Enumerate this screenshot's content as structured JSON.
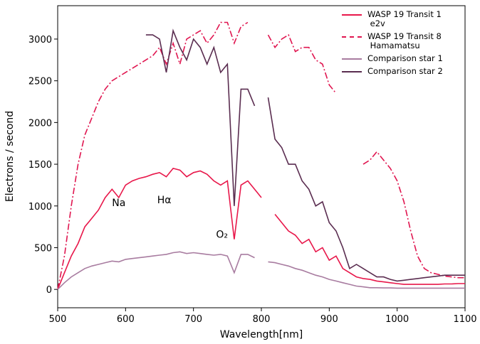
{
  "chart_data": {
    "type": "line",
    "xlabel": "Wavelength[nm]",
    "ylabel": "Electrons / second",
    "xlim": [
      500,
      1100
    ],
    "ylim": [
      -220,
      3400
    ],
    "xticks": [
      500,
      600,
      700,
      800,
      900,
      1000,
      1100
    ],
    "yticks": [
      0,
      500,
      1000,
      1500,
      2000,
      2500,
      3000
    ],
    "legend": "upper right",
    "annotations": [
      {
        "text": "Na",
        "x": 590,
        "y": 1000
      },
      {
        "text": "Hα",
        "x": 657,
        "y": 1030
      },
      {
        "text": "O₂",
        "x": 742,
        "y": 620
      }
    ],
    "x": [
      500,
      510,
      520,
      530,
      540,
      550,
      560,
      570,
      580,
      590,
      600,
      610,
      620,
      630,
      640,
      650,
      660,
      670,
      680,
      690,
      700,
      710,
      720,
      730,
      740,
      750,
      760,
      770,
      780,
      790,
      800,
      810,
      820,
      830,
      840,
      850,
      860,
      870,
      880,
      890,
      900,
      910,
      920,
      930,
      940,
      950,
      960,
      970,
      980,
      990,
      1000,
      1010,
      1020,
      1030,
      1040,
      1050,
      1060,
      1070,
      1080,
      1090,
      1100
    ],
    "series": [
      {
        "name": "WASP 19 Transit 1\n e2v",
        "color": "#e8174a",
        "style": "solid",
        "values": [
          0,
          200,
          400,
          550,
          750,
          850,
          950,
          1100,
          1200,
          1100,
          1250,
          1300,
          1330,
          1350,
          1380,
          1400,
          1350,
          1450,
          1430,
          1350,
          1400,
          1420,
          1380,
          1300,
          1250,
          1300,
          600,
          1250,
          1300,
          1200,
          1100,
          null,
          900,
          800,
          700,
          650,
          550,
          600,
          450,
          500,
          350,
          400,
          250,
          200,
          150,
          130,
          120,
          100,
          90,
          80,
          70,
          60,
          60,
          60,
          60,
          60,
          60,
          65,
          65,
          70,
          70
        ]
      },
      {
        "name": "WASP 19 Transit 8\n Hamamatsu",
        "color": "#e01650",
        "style": "dashdot",
        "values": [
          0,
          400,
          1000,
          1500,
          1850,
          2050,
          2250,
          2400,
          2500,
          2550,
          2600,
          2650,
          2700,
          2750,
          2800,
          2900,
          2700,
          2950,
          2700,
          3000,
          3050,
          3100,
          2950,
          3050,
          3200,
          3200,
          2950,
          3150,
          3200,
          null,
          null,
          3050,
          2900,
          3000,
          3050,
          2850,
          2900,
          2900,
          2750,
          2700,
          2450,
          2350,
          null,
          null,
          null,
          1500,
          1550,
          1650,
          1550,
          1450,
          1300,
          1050,
          700,
          400,
          250,
          200,
          180,
          160,
          150,
          140,
          140
        ]
      },
      {
        "name": "Comparison star 1",
        "color": "#a87ca0",
        "style": "solid",
        "values": [
          0,
          80,
          150,
          200,
          250,
          280,
          300,
          320,
          340,
          330,
          360,
          370,
          380,
          390,
          400,
          410,
          420,
          440,
          450,
          430,
          440,
          430,
          420,
          410,
          420,
          400,
          200,
          420,
          420,
          380,
          null,
          330,
          320,
          300,
          280,
          250,
          230,
          200,
          170,
          150,
          120,
          100,
          80,
          60,
          40,
          30,
          20,
          20,
          18,
          18,
          15,
          15,
          15,
          15,
          15,
          15,
          15,
          15,
          15,
          15,
          15
        ]
      },
      {
        "name": "Comparison star 2",
        "color": "#5a2d50",
        "style": "solid",
        "values": [
          null,
          null,
          null,
          null,
          null,
          null,
          null,
          null,
          null,
          null,
          null,
          null,
          null,
          3050,
          3050,
          3000,
          2600,
          3100,
          2900,
          2750,
          3000,
          2900,
          2700,
          2900,
          2600,
          2700,
          1000,
          2400,
          2400,
          2200,
          null,
          2300,
          1800,
          1700,
          1500,
          1500,
          1300,
          1200,
          1000,
          1050,
          800,
          700,
          500,
          250,
          300,
          250,
          200,
          150,
          150,
          120,
          100,
          110,
          120,
          130,
          140,
          150,
          160,
          170,
          170,
          170,
          170
        ]
      }
    ]
  }
}
